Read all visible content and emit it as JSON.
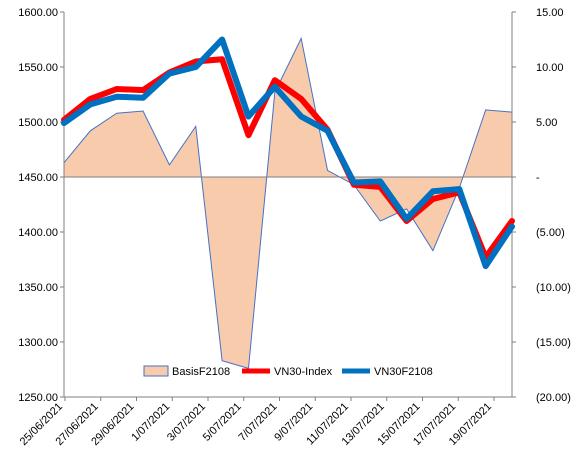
{
  "chart_data": {
    "type": "line",
    "x": [
      "25/06/2021",
      "28/06/2021",
      "29/06/2021",
      "30/06/2021",
      "1/07/2021",
      "2/07/2021",
      "5/07/2021",
      "6/07/2021",
      "7/07/2021",
      "8/07/2021",
      "9/07/2021",
      "12/07/2021",
      "13/07/2021",
      "14/07/2021",
      "15/07/2021",
      "16/07/2021",
      "19/07/2021",
      "20/07/2021"
    ],
    "xlabels": [
      "25/06/2021",
      "27/06/2021",
      "29/06/2021",
      "1/07/2021",
      "3/07/2021",
      "5/07/2021",
      "7/07/2021",
      "9/07/2021",
      "11/07/2021",
      "13/07/2021",
      "15/07/2021",
      "17/07/2021",
      "19/07/2021"
    ],
    "y_left": {
      "lim": [
        1250,
        1600
      ],
      "ticks": [
        "1250.00",
        "1300.00",
        "1350.00",
        "1400.00",
        "1450.00",
        "1500.00",
        "1550.00",
        "1600.00"
      ]
    },
    "y_right": {
      "lim": [
        -20,
        15
      ],
      "ticks": [
        "(20.00)",
        "(15.00)",
        "(10.00)",
        "(5.00)",
        "-",
        "5.00",
        "10.00",
        "15.00"
      ]
    },
    "series": [
      {
        "name": "BasisF2108",
        "type": "area",
        "axis": "right",
        "color": "#F8CBAD",
        "edge": "#4472C4",
        "values": [
          1.3,
          4.2,
          5.8,
          6.0,
          1.1,
          4.6,
          -16.7,
          -17.4,
          7.7,
          12.6,
          0.6,
          -0.7,
          -4.0,
          -2.9,
          -6.7,
          -1.0,
          6.1,
          5.9
        ]
      },
      {
        "name": "VN30-Index",
        "type": "line",
        "axis": "left",
        "color": "#FF0000",
        "values": [
          1502,
          1521,
          1530,
          1529,
          1545,
          1555,
          1557,
          1488,
          1538,
          1521,
          1493,
          1443,
          1441,
          1410,
          1430,
          1436,
          1377,
          1410
        ]
      },
      {
        "name": "VN30F2108",
        "type": "line",
        "axis": "left",
        "color": "#0070C0",
        "values": [
          1499,
          1516,
          1523,
          1522,
          1544,
          1550,
          1575,
          1505,
          1532,
          1505,
          1492,
          1445,
          1446,
          1412,
          1437,
          1439,
          1369,
          1405
        ]
      }
    ],
    "legend": "bottom-center",
    "grid": false
  }
}
